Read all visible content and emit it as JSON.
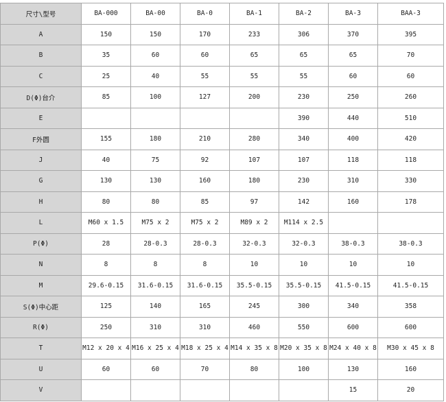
{
  "table": {
    "header": [
      "尺寸\\型号",
      "BA-000",
      "BA-00",
      "BA-0",
      "BA-1",
      "BA-2",
      "BA-3",
      "BAA-3"
    ],
    "rows": [
      [
        "A",
        150,
        150,
        170,
        233,
        306,
        370,
        395
      ],
      [
        "B",
        35,
        60,
        60,
        65,
        65,
        65,
        70
      ],
      [
        "C",
        25,
        40,
        55,
        55,
        55,
        60,
        60
      ],
      [
        "D(Φ)台介",
        85,
        100,
        127,
        200,
        230,
        250,
        260
      ],
      [
        "E",
        null,
        null,
        null,
        null,
        390,
        440,
        510
      ],
      [
        "F外圆",
        155,
        180,
        210,
        280,
        340,
        400,
        420
      ],
      [
        "J",
        40,
        75,
        92,
        107,
        107,
        118,
        118
      ],
      [
        "G",
        130,
        130,
        160,
        180,
        230,
        310,
        330
      ],
      [
        "H",
        80,
        80,
        85,
        97,
        142,
        160,
        178
      ],
      [
        "L",
        "M60 x 1.5",
        "M75 x 2",
        "M75 x 2",
        "M89 x 2",
        "M114 x 2.5",
        null,
        null
      ],
      [
        "P(Φ)",
        28,
        "28-0.3",
        "28-0.3",
        "32-0.3",
        "32-0.3",
        "38-0.3",
        "38-0.3"
      ],
      [
        "N",
        8,
        8,
        8,
        10,
        10,
        10,
        10
      ],
      [
        "M",
        "29.6-0.15",
        "31.6-0.15",
        "31.6-0.15",
        "35.5-0.15",
        "35.5-0.15",
        "41.5-0.15",
        "41.5-0.15"
      ],
      [
        "S(Φ)中心距",
        125,
        140,
        165,
        245,
        300,
        340,
        358
      ],
      [
        "R(Φ)",
        250,
        310,
        310,
        460,
        550,
        600,
        600
      ],
      [
        "T",
        "M12 x 20 x 4",
        "M16 x 25 x 4",
        "M18 x 25 x 4",
        "M14 x 35 x 8",
        "M20 x 35 x 8",
        "M24 x 40 x 8",
        "M30 x 45 x 8"
      ],
      [
        "U",
        60,
        60,
        70,
        80,
        100,
        130,
        160
      ],
      [
        "V",
        null,
        null,
        null,
        null,
        null,
        15,
        20
      ]
    ]
  }
}
